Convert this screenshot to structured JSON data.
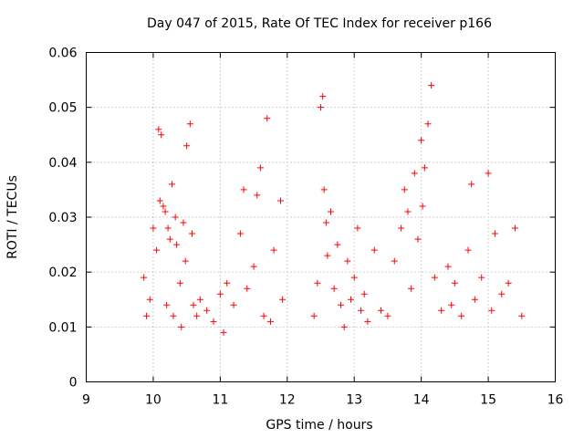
{
  "chart_data": {
    "type": "scatter",
    "title": "Day 047 of 2015, Rate Of TEC Index for receiver p166",
    "xlabel": "GPS time / hours",
    "ylabel": "ROTI / TECUs",
    "xlim": [
      9,
      16
    ],
    "ylim": [
      0,
      0.06
    ],
    "x_ticks": [
      9,
      10,
      11,
      12,
      13,
      14,
      15,
      16
    ],
    "x_tick_labels": [
      "9",
      "10",
      "11",
      "12",
      "13",
      "14",
      "15",
      "16"
    ],
    "y_ticks": [
      0,
      0.01,
      0.02,
      0.03,
      0.04,
      0.05,
      0.06
    ],
    "y_tick_labels": [
      "0",
      "0.01",
      "0.02",
      "0.03",
      "0.04",
      "0.05",
      "0.06"
    ],
    "grid": true,
    "marker": "+",
    "color": "#ff0000",
    "series": [
      {
        "name": "ROTI p166",
        "x": [
          9.86,
          9.9,
          9.95,
          10.0,
          10.05,
          10.08,
          10.1,
          10.12,
          10.15,
          10.18,
          10.2,
          10.22,
          10.25,
          10.28,
          10.3,
          10.33,
          10.35,
          10.4,
          10.42,
          10.45,
          10.48,
          10.5,
          10.55,
          10.58,
          10.6,
          10.65,
          10.7,
          10.8,
          10.9,
          11.0,
          11.05,
          11.1,
          11.2,
          11.3,
          11.35,
          11.4,
          11.5,
          11.55,
          11.6,
          11.65,
          11.7,
          11.75,
          11.8,
          11.9,
          11.93,
          12.4,
          12.45,
          12.5,
          12.53,
          12.55,
          12.58,
          12.6,
          12.65,
          12.7,
          12.75,
          12.8,
          12.85,
          12.9,
          12.95,
          13.0,
          13.05,
          13.1,
          13.15,
          13.2,
          13.3,
          13.4,
          13.5,
          13.6,
          13.7,
          13.75,
          13.8,
          13.85,
          13.9,
          13.95,
          14.0,
          14.02,
          14.05,
          14.1,
          14.15,
          14.2,
          14.3,
          14.4,
          14.45,
          14.5,
          14.6,
          14.7,
          14.75,
          14.8,
          14.9,
          15.0,
          15.05,
          15.1,
          15.2,
          15.3,
          15.4,
          15.5
        ],
        "y": [
          0.019,
          0.012,
          0.015,
          0.028,
          0.024,
          0.046,
          0.033,
          0.045,
          0.032,
          0.031,
          0.014,
          0.028,
          0.026,
          0.036,
          0.012,
          0.03,
          0.025,
          0.018,
          0.01,
          0.029,
          0.022,
          0.043,
          0.047,
          0.027,
          0.014,
          0.012,
          0.015,
          0.013,
          0.011,
          0.016,
          0.009,
          0.018,
          0.014,
          0.027,
          0.035,
          0.017,
          0.021,
          0.034,
          0.039,
          0.012,
          0.048,
          0.011,
          0.024,
          0.033,
          0.015,
          0.012,
          0.018,
          0.05,
          0.052,
          0.035,
          0.029,
          0.023,
          0.031,
          0.017,
          0.025,
          0.014,
          0.01,
          0.022,
          0.015,
          0.019,
          0.028,
          0.013,
          0.016,
          0.011,
          0.024,
          0.013,
          0.012,
          0.022,
          0.028,
          0.035,
          0.031,
          0.017,
          0.038,
          0.026,
          0.044,
          0.032,
          0.039,
          0.047,
          0.054,
          0.019,
          0.013,
          0.021,
          0.014,
          0.018,
          0.012,
          0.024,
          0.036,
          0.015,
          0.019,
          0.038,
          0.013,
          0.027,
          0.016,
          0.018,
          0.028,
          0.012
        ]
      }
    ]
  }
}
